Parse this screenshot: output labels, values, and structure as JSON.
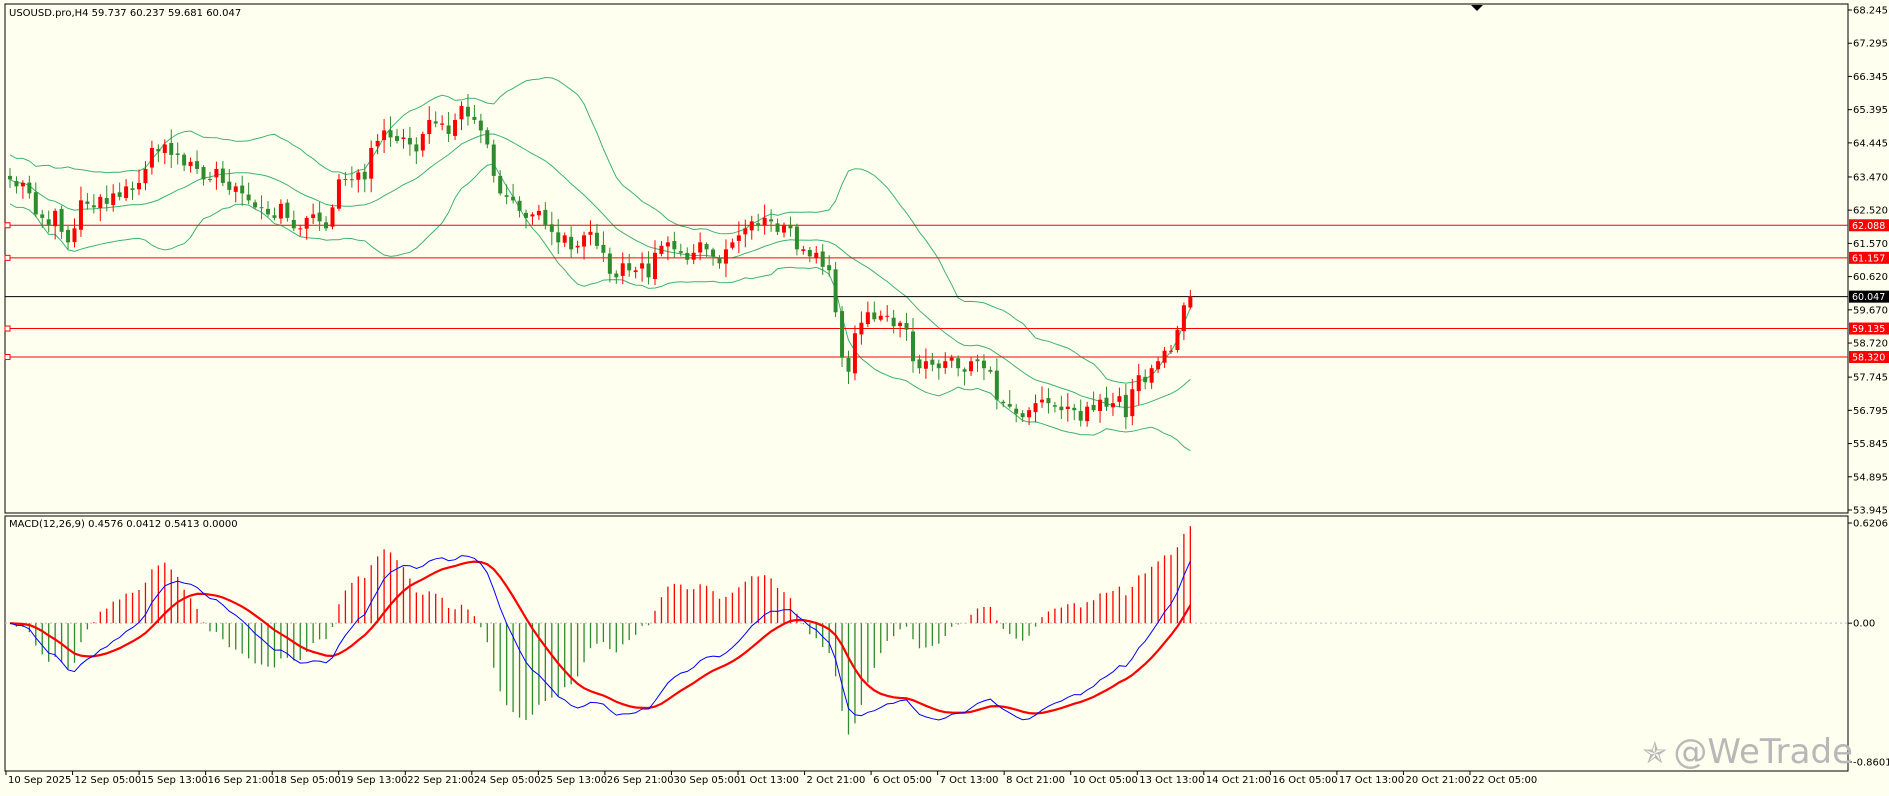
{
  "header": {
    "price_title": "USOUSD.pro,H4  59.737 60.237 59.681 60.047",
    "macd_title": "MACD(12,26,9) 0.4576 0.0412 0.5413 0.0000"
  },
  "watermark": {
    "text": "@WeTrade",
    "logo_icon": "wetrade-logo-icon"
  },
  "colors": {
    "background": "#fffff0",
    "bull": "#ff0000",
    "bear": "#2e8b2e",
    "band": "#3cb371",
    "level": "#ff0000",
    "current": "#000000",
    "macd_line": "#0000ff",
    "signal_line": "#ff0000"
  },
  "chart_data": [
    {
      "type": "candlestick",
      "title": "USOUSD.pro,H4",
      "ohlc_header": {
        "open": 59.737,
        "high": 60.237,
        "low": 59.681,
        "close": 60.047
      },
      "ylim": [
        53.945,
        68.245
      ],
      "y_ticks": [
        "68.245",
        "67.295",
        "66.345",
        "65.395",
        "64.445",
        "63.470",
        "62.520",
        "61.570",
        "60.620",
        "59.670",
        "58.720",
        "57.745",
        "56.795",
        "55.845",
        "54.895",
        "53.945"
      ],
      "x_ticks": [
        "10 Sep 2025",
        "12 Sep 05:00",
        "15 Sep 13:00",
        "16 Sep 21:00",
        "18 Sep 05:00",
        "19 Sep 13:00",
        "22 Sep 21:00",
        "24 Sep 05:00",
        "25 Sep 13:00",
        "26 Sep 21:00",
        "30 Sep 05:00",
        "1 Oct 13:00",
        "2 Oct 21:00",
        "6 Oct 05:00",
        "7 Oct 13:00",
        "8 Oct 21:00",
        "10 Oct 05:00",
        "13 Oct 13:00",
        "14 Oct 21:00",
        "16 Oct 05:00",
        "17 Oct 13:00",
        "20 Oct 21:00",
        "22 Oct 05:00"
      ],
      "horizontal_levels": [
        {
          "value": 62.088,
          "label": "62.088"
        },
        {
          "value": 61.157,
          "label": "61.157"
        },
        {
          "value": 59.135,
          "label": "59.135"
        },
        {
          "value": 58.32,
          "label": "58.320"
        }
      ],
      "current_price": {
        "value": 60.047,
        "label": "60.047"
      },
      "closes": [
        63.4,
        63.2,
        63.3,
        63.0,
        62.4,
        62.3,
        62.1,
        62.5,
        61.9,
        61.6,
        62.0,
        62.8,
        62.7,
        62.6,
        62.9,
        62.7,
        63.0,
        62.9,
        63.2,
        63.1,
        63.3,
        63.7,
        64.3,
        64.2,
        64.4,
        64.1,
        64.1,
        63.8,
        63.9,
        63.7,
        63.4,
        63.4,
        63.7,
        63.3,
        63.1,
        63.2,
        63.0,
        62.8,
        62.6,
        62.6,
        62.4,
        62.3,
        62.7,
        62.3,
        62.0,
        62.0,
        62.3,
        62.4,
        62.2,
        62.0,
        62.6,
        63.4,
        63.4,
        63.4,
        63.6,
        63.4,
        64.3,
        64.5,
        64.8,
        64.6,
        64.5,
        64.6,
        64.4,
        64.2,
        64.7,
        65.1,
        65.0,
        65.0,
        64.7,
        65.1,
        65.5,
        65.2,
        65.1,
        64.8,
        64.4,
        63.5,
        63.0,
        62.9,
        62.8,
        62.5,
        62.3,
        62.4,
        62.5,
        62.1,
        61.9,
        61.6,
        61.8,
        61.4,
        61.5,
        61.8,
        61.9,
        61.5,
        61.3,
        60.7,
        60.6,
        61.0,
        60.8,
        60.8,
        61.0,
        60.6,
        61.3,
        61.5,
        61.6,
        61.4,
        61.3,
        61.1,
        61.3,
        61.6,
        61.4,
        61.2,
        61.0,
        61.4,
        61.6,
        61.8,
        62.0,
        62.2,
        62.1,
        62.3,
        62.2,
        61.9,
        62.1,
        62.0,
        61.4,
        61.4,
        61.2,
        61.3,
        60.9,
        60.8,
        59.6,
        58.3,
        57.9,
        59.0,
        59.3,
        59.6,
        59.4,
        59.5,
        59.5,
        59.2,
        59.3,
        59.1,
        58.2,
        58.0,
        58.2,
        58.1,
        58.0,
        58.2,
        58.3,
        58.0,
        57.9,
        58.2,
        58.2,
        58.0,
        57.9,
        57.1,
        57.0,
        56.9,
        56.7,
        56.6,
        56.8,
        57.0,
        57.1,
        57.0,
        56.9,
        56.8,
        56.9,
        56.8,
        56.5,
        56.9,
        56.8,
        57.1,
        56.9,
        57.0,
        57.2,
        56.6,
        57.4,
        57.8,
        57.6,
        58.0,
        58.2,
        58.5,
        58.5,
        59.1,
        59.8,
        60.047
      ]
    },
    {
      "type": "macd",
      "title": "MACD(12,26,9)",
      "values": {
        "macd": 0.4576,
        "signal": 0.0412,
        "histogram": 0.5413,
        "zero": 0.0
      },
      "ylim": [
        -0.8601,
        0.6206
      ],
      "y_ticks": [
        "0.6206",
        "0.00",
        "-0.8601"
      ],
      "series": [
        {
          "name": "Histogram",
          "style": "bars"
        },
        {
          "name": "MACD",
          "style": "line",
          "color": "#0000ff"
        },
        {
          "name": "Signal",
          "style": "line",
          "color": "#ff0000"
        }
      ]
    }
  ]
}
